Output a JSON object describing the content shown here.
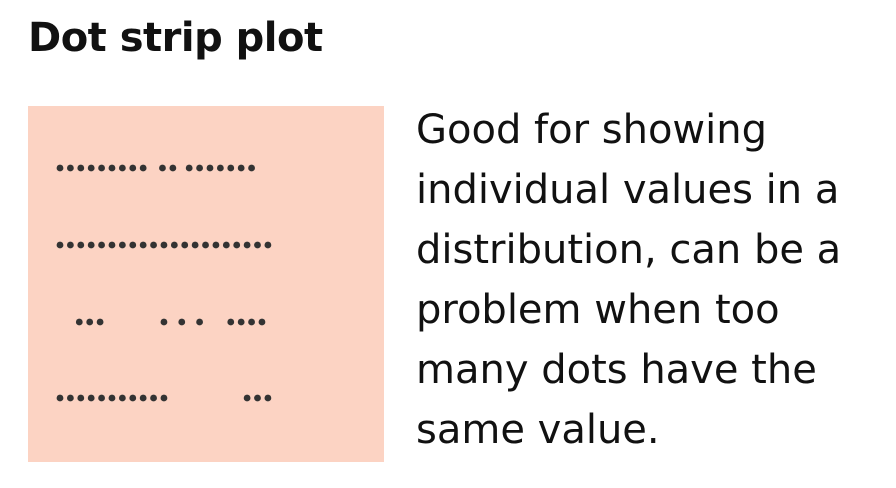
{
  "title": "Dot strip plot",
  "description": "Good for showing individual values in a distribution, can be a problem when too many dots have the same value.",
  "colors": {
    "panel_background": "#fcd3c3",
    "dot": "#333333"
  },
  "chart_data": {
    "type": "scatter",
    "title": "",
    "xlabel": "",
    "ylabel": "",
    "xlim": [
      0,
      100
    ],
    "grid": false,
    "legend": "none",
    "series": [
      {
        "values": [
          0,
          3.5,
          7,
          10.5,
          14,
          17.5,
          21,
          24.5,
          28,
          34.5,
          38,
          43.5,
          47,
          50.5,
          54,
          57.5,
          61,
          64.5
        ]
      },
      {
        "values": [
          0,
          3.5,
          7,
          10.5,
          14,
          17.5,
          21,
          24.5,
          28,
          31.5,
          35,
          38.5,
          42,
          45.5,
          49,
          52.5,
          56,
          59.5,
          63,
          66.5,
          70
        ]
      },
      {
        "values": [
          6.5,
          10,
          13.5,
          35,
          41,
          47,
          57.5,
          61,
          64.5,
          68
        ]
      },
      {
        "values": [
          0,
          3.5,
          7,
          10.5,
          14,
          17.5,
          21,
          24.5,
          28,
          31.5,
          35,
          63,
          66.5,
          70
        ]
      }
    ]
  }
}
